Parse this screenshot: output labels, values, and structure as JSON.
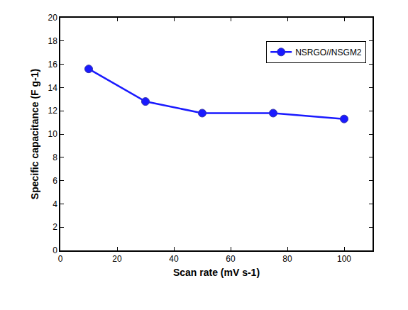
{
  "chart_data": {
    "type": "line",
    "x_label": "Scan rate (mV s-1)",
    "y_label": "Specific capacitance (F g-1)",
    "series": [
      {
        "name": "NSRGO//NSGM2",
        "color": "#1a1aff",
        "marker": "circle",
        "line_style": "solid",
        "x": [
          10,
          30,
          50,
          75,
          100
        ],
        "values": [
          15.6,
          12.8,
          11.8,
          11.8,
          11.3
        ]
      }
    ],
    "xlim": [
      0,
      110
    ],
    "xticks": [
      0,
      20,
      40,
      60,
      80,
      100
    ],
    "ylim": [
      0,
      20
    ],
    "yticks": [
      0,
      2,
      4,
      6,
      8,
      10,
      12,
      14,
      16,
      18,
      20
    ],
    "grid": false,
    "legend": "upper right"
  }
}
